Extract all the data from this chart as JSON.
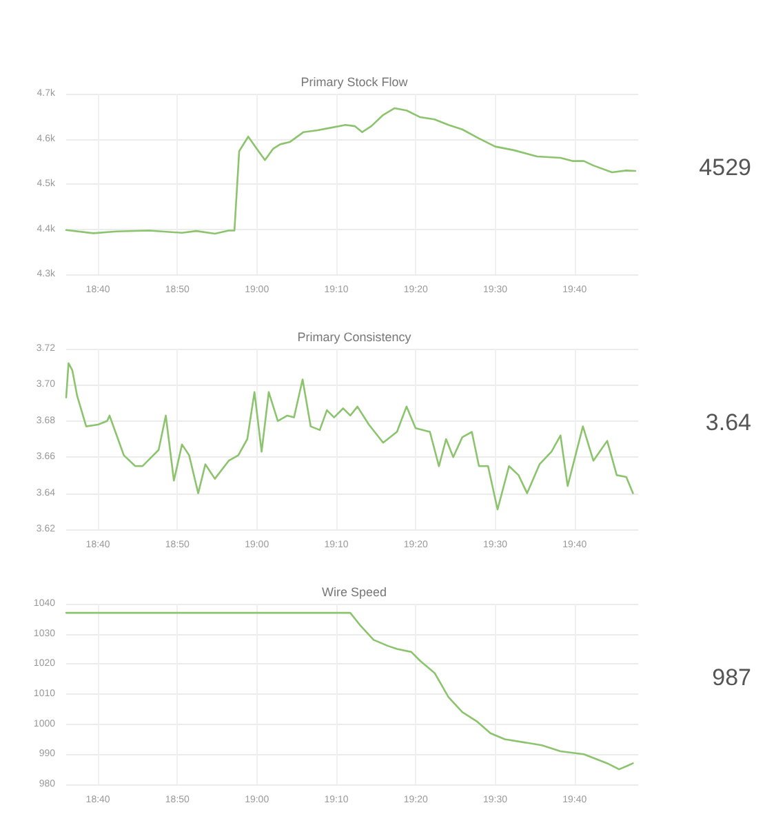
{
  "chart_data": [
    {
      "type": "line",
      "title": "Primary Stock Flow",
      "annotations": [
        "4529"
      ],
      "grid": true,
      "marker": "none",
      "line_style": "solid",
      "x": [
        18.6,
        18.657,
        18.706,
        18.774,
        18.843,
        18.873,
        18.912,
        18.941,
        18.953,
        18.963,
        18.982,
        19.0,
        19.017,
        19.034,
        19.049,
        19.069,
        19.098,
        19.127,
        19.157,
        19.186,
        19.206,
        19.221,
        19.24,
        19.265,
        19.289,
        19.314,
        19.343,
        19.373,
        19.402,
        19.431,
        19.466,
        19.5,
        19.539,
        19.588,
        19.637,
        19.662,
        19.686,
        19.706,
        19.745,
        19.775,
        19.794
      ],
      "series": [
        {
          "color": "#8cc46e",
          "values": [
            4398,
            4391,
            4395,
            4397,
            4392,
            4396,
            4390,
            4397,
            4397,
            4573,
            4605,
            4578,
            4553,
            4578,
            4588,
            4593,
            4615,
            4619,
            4625,
            4631,
            4628,
            4615,
            4628,
            4653,
            4668,
            4663,
            4648,
            4643,
            4631,
            4621,
            4601,
            4583,
            4575,
            4561,
            4558,
            4551,
            4551,
            4541,
            4526,
            4530,
            4529
          ]
        }
      ],
      "xlim": [
        18.6,
        19.8
      ],
      "xticks": [
        {
          "value": 18.6667,
          "label": "18:40"
        },
        {
          "value": 18.8333,
          "label": "18:50"
        },
        {
          "value": 19,
          "label": "19:00"
        },
        {
          "value": 19.1667,
          "label": "19:10"
        },
        {
          "value": 19.3333,
          "label": "19:20"
        },
        {
          "value": 19.5,
          "label": "19:30"
        },
        {
          "value": 19.6667,
          "label": "19:40"
        }
      ],
      "ylim": [
        4300,
        4700
      ],
      "yticks": [
        {
          "value": 4300,
          "label": "4.3k"
        },
        {
          "value": 4400,
          "label": "4.4k"
        },
        {
          "value": 4500,
          "label": "4.5k"
        },
        {
          "value": 4600,
          "label": "4.6k"
        },
        {
          "value": 4700,
          "label": "4.7k"
        }
      ]
    },
    {
      "type": "line",
      "title": "Primary Consistency",
      "annotations": [
        "3.64"
      ],
      "grid": true,
      "marker": "none",
      "line_style": "solid",
      "x": [
        18.6,
        18.605,
        18.613,
        18.623,
        18.642,
        18.667,
        18.686,
        18.691,
        18.706,
        18.721,
        18.745,
        18.76,
        18.779,
        18.794,
        18.809,
        18.826,
        18.843,
        18.858,
        18.877,
        18.892,
        18.912,
        18.941,
        18.961,
        18.98,
        18.995,
        19.01,
        19.025,
        19.044,
        19.064,
        19.078,
        19.096,
        19.113,
        19.132,
        19.147,
        19.162,
        19.181,
        19.196,
        19.211,
        19.235,
        19.265,
        19.294,
        19.314,
        19.333,
        19.363,
        19.382,
        19.397,
        19.412,
        19.431,
        19.451,
        19.466,
        19.485,
        19.505,
        19.529,
        19.549,
        19.567,
        19.593,
        19.618,
        19.637,
        19.652,
        19.684,
        19.706,
        19.735,
        19.755,
        19.775,
        19.789
      ],
      "series": [
        {
          "color": "#8cc46e",
          "values": [
            3.693,
            3.712,
            3.708,
            3.694,
            3.677,
            3.678,
            3.68,
            3.683,
            3.672,
            3.661,
            3.655,
            3.655,
            3.66,
            3.664,
            3.683,
            3.647,
            3.667,
            3.661,
            3.64,
            3.656,
            3.648,
            3.658,
            3.661,
            3.67,
            3.696,
            3.663,
            3.696,
            3.68,
            3.683,
            3.682,
            3.703,
            3.677,
            3.675,
            3.686,
            3.682,
            3.687,
            3.683,
            3.688,
            3.678,
            3.668,
            3.674,
            3.688,
            3.676,
            3.674,
            3.655,
            3.67,
            3.66,
            3.671,
            3.674,
            3.655,
            3.655,
            3.631,
            3.655,
            3.65,
            3.64,
            3.656,
            3.663,
            3.672,
            3.644,
            3.677,
            3.658,
            3.669,
            3.65,
            3.649,
            3.64
          ]
        }
      ],
      "xlim": [
        18.6,
        19.8
      ],
      "xticks": [
        {
          "value": 18.6667,
          "label": "18:40"
        },
        {
          "value": 18.8333,
          "label": "18:50"
        },
        {
          "value": 19,
          "label": "19:00"
        },
        {
          "value": 19.1667,
          "label": "19:10"
        },
        {
          "value": 19.3333,
          "label": "19:20"
        },
        {
          "value": 19.5,
          "label": "19:30"
        },
        {
          "value": 19.6667,
          "label": "19:40"
        }
      ],
      "ylim": [
        3.62,
        3.72
      ],
      "yticks": [
        {
          "value": 3.62,
          "label": "3.62"
        },
        {
          "value": 3.64,
          "label": "3.64"
        },
        {
          "value": 3.66,
          "label": "3.66"
        },
        {
          "value": 3.68,
          "label": "3.68"
        },
        {
          "value": 3.7,
          "label": "3.70"
        },
        {
          "value": 3.72,
          "label": "3.72"
        }
      ]
    },
    {
      "type": "line",
      "title": "Wire Speed",
      "annotations": [
        "987"
      ],
      "grid": true,
      "marker": "none",
      "line_style": "solid",
      "x": [
        18.6,
        19.196,
        19.216,
        19.245,
        19.275,
        19.294,
        19.324,
        19.343,
        19.373,
        19.402,
        19.431,
        19.461,
        19.49,
        19.52,
        19.559,
        19.598,
        19.637,
        19.686,
        19.735,
        19.76,
        19.775,
        19.789
      ],
      "series": [
        {
          "color": "#8cc46e",
          "values": [
            1037,
            1037,
            1033,
            1028,
            1026,
            1025,
            1024,
            1021,
            1017,
            1009,
            1004,
            1001,
            997,
            995,
            994,
            993,
            991,
            990,
            987,
            985,
            986,
            987
          ]
        }
      ],
      "xlim": [
        18.6,
        19.8
      ],
      "xticks": [
        {
          "value": 18.6667,
          "label": "18:40"
        },
        {
          "value": 18.8333,
          "label": "18:50"
        },
        {
          "value": 19,
          "label": "19:00"
        },
        {
          "value": 19.1667,
          "label": "19:10"
        },
        {
          "value": 19.3333,
          "label": "19:20"
        },
        {
          "value": 19.5,
          "label": "19:30"
        },
        {
          "value": 19.6667,
          "label": "19:40"
        }
      ],
      "ylim": [
        980,
        1040
      ],
      "yticks": [
        980,
        990,
        1000,
        1010,
        1020,
        1030,
        1040
      ]
    }
  ]
}
